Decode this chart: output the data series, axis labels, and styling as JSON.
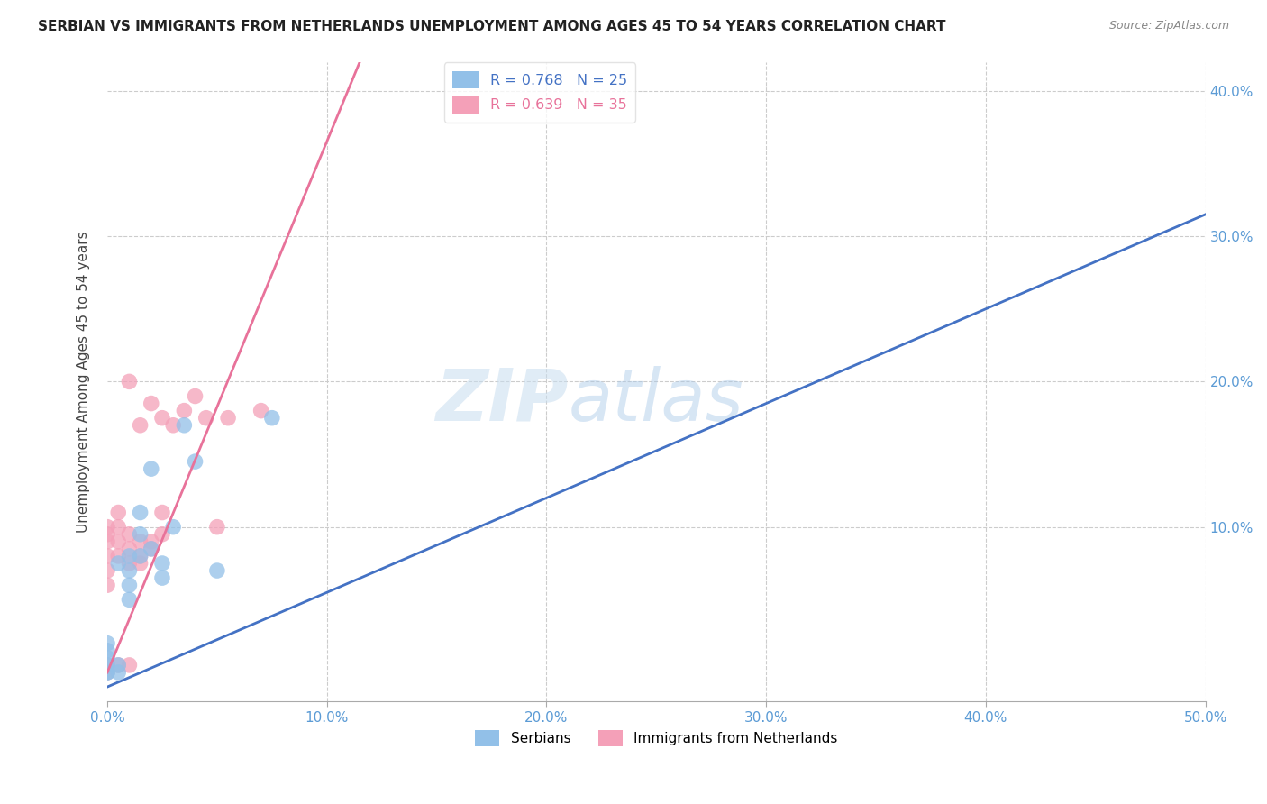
{
  "title": "SERBIAN VS IMMIGRANTS FROM NETHERLANDS UNEMPLOYMENT AMONG AGES 45 TO 54 YEARS CORRELATION CHART",
  "source": "Source: ZipAtlas.com",
  "ylabel": "Unemployment Among Ages 45 to 54 years",
  "xlim": [
    0,
    0.5
  ],
  "ylim": [
    -0.02,
    0.42
  ],
  "serbian_R": 0.768,
  "serbian_N": 25,
  "netherlands_R": 0.639,
  "netherlands_N": 35,
  "serbian_color": "#92C0E8",
  "netherlands_color": "#F4A0B8",
  "line_serbian_color": "#4472C4",
  "line_netherlands_color": "#E8729A",
  "watermark_zip": "ZIP",
  "watermark_atlas": "atlas",
  "serbian_x": [
    0.0,
    0.0,
    0.0,
    0.0,
    0.0,
    0.0,
    0.005,
    0.005,
    0.005,
    0.01,
    0.01,
    0.01,
    0.01,
    0.015,
    0.015,
    0.015,
    0.02,
    0.02,
    0.025,
    0.025,
    0.03,
    0.035,
    0.04,
    0.05,
    0.075
  ],
  "serbian_y": [
    0.0,
    0.0,
    0.005,
    0.01,
    0.015,
    0.02,
    0.0,
    0.005,
    0.075,
    0.05,
    0.06,
    0.07,
    0.08,
    0.08,
    0.095,
    0.11,
    0.085,
    0.14,
    0.065,
    0.075,
    0.1,
    0.17,
    0.145,
    0.07,
    0.175
  ],
  "netherlands_x": [
    0.0,
    0.0,
    0.0,
    0.0,
    0.0,
    0.0,
    0.0,
    0.0,
    0.005,
    0.005,
    0.005,
    0.005,
    0.005,
    0.01,
    0.01,
    0.01,
    0.01,
    0.01,
    0.015,
    0.015,
    0.015,
    0.015,
    0.02,
    0.02,
    0.02,
    0.025,
    0.025,
    0.025,
    0.03,
    0.035,
    0.04,
    0.045,
    0.05,
    0.055,
    0.07
  ],
  "netherlands_y": [
    0.0,
    0.005,
    0.06,
    0.07,
    0.08,
    0.09,
    0.095,
    0.1,
    0.005,
    0.08,
    0.09,
    0.1,
    0.11,
    0.005,
    0.075,
    0.085,
    0.095,
    0.2,
    0.075,
    0.08,
    0.09,
    0.17,
    0.085,
    0.09,
    0.185,
    0.095,
    0.11,
    0.175,
    0.17,
    0.18,
    0.19,
    0.175,
    0.1,
    0.175,
    0.18
  ],
  "line_serbian_x0": 0.0,
  "line_serbian_x1": 0.5,
  "line_serbian_y0": -0.01,
  "line_serbian_y1": 0.315,
  "line_netherlands_x0": 0.0,
  "line_netherlands_x1": 0.115,
  "line_netherlands_y0": 0.0,
  "line_netherlands_y1": 0.42
}
